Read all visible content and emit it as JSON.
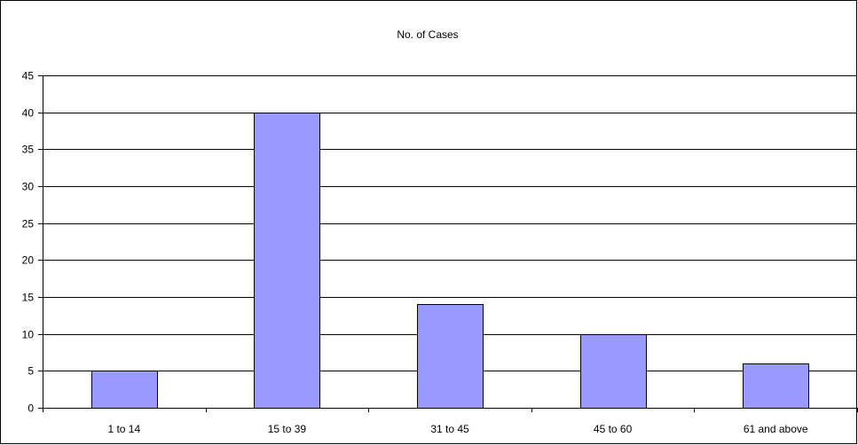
{
  "chart_data": {
    "type": "bar",
    "title": "No. of Cases",
    "xlabel": "",
    "ylabel": "",
    "categories": [
      "1 to 14",
      "15 to 39",
      "31 to 45",
      "45 to 60",
      "61 and above"
    ],
    "series": [
      {
        "values": [
          5,
          40,
          14,
          10,
          6
        ]
      }
    ],
    "ylim": [
      0,
      45
    ],
    "y_ticks": [
      0,
      5,
      10,
      15,
      20,
      25,
      30,
      35,
      40,
      45
    ],
    "grid": true,
    "legend": "none",
    "colors": {
      "bar_fill": "#9999ff",
      "bar_stroke": "#000000",
      "gridline": "#000000",
      "background": "#ffffff"
    }
  }
}
